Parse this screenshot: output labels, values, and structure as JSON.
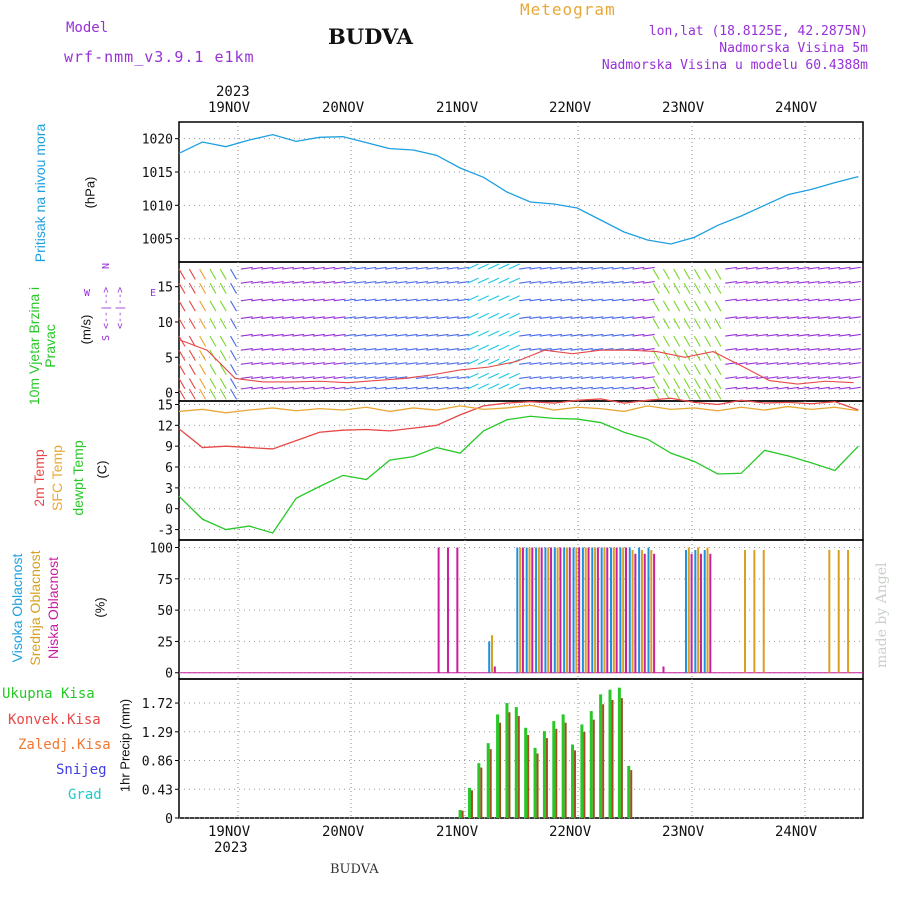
{
  "header": {
    "title": "BUDVA",
    "model_label": "Model",
    "model_name": "wrf-nmm_v3.9.1 e1km",
    "meteogram_label": "Meteogram",
    "lonlat": "lon,lat (18.8125E, 42.2875N)",
    "altitude": "Nadmorska Visina 5m",
    "model_altitude": "Nadmorska Visina u modelu 60.4388m",
    "footer_title": "BUDVA",
    "watermark": "made by Angel"
  },
  "time_axis": {
    "labels": [
      "19NOV",
      "20NOV",
      "21NOV",
      "22NOV",
      "23NOV",
      "24NOV"
    ],
    "year": "2023"
  },
  "colors": {
    "pressure": "#1ea0e0",
    "temp2m": "#e84848",
    "sfc_temp": "#e8a838",
    "dewpoint": "#28c828",
    "high_cloud": "#1e90e0",
    "mid_cloud": "#d8a020",
    "low_cloud": "#c81ea0",
    "total_precip": "#28c828",
    "conv_precip": "#e84848",
    "frozen_precip": "#f07830",
    "snow": "#4040e0",
    "hail": "#20c8c8",
    "wind_label": "#28c828",
    "axis_purple": "#9830d8"
  },
  "chart_data": [
    {
      "type": "line",
      "panel": "pressure",
      "ylabel": "Pritisak na nivou mora",
      "unit": "(hPa)",
      "yticks": [
        "1005",
        "1010",
        "1015",
        "1020"
      ],
      "ylim": [
        1001.5,
        1022.5
      ],
      "x": [
        0,
        5,
        10,
        15,
        20,
        25,
        30,
        35,
        40,
        45,
        50,
        55,
        60,
        65,
        70,
        75,
        80,
        85,
        90,
        95,
        100,
        105,
        110,
        115,
        120,
        125,
        130,
        135,
        140,
        145
      ],
      "series": [
        {
          "values": [
            1017.8,
            1019.5,
            1018.8,
            1019.8,
            1020.6,
            1019.6,
            1020.2,
            1020.3,
            1019.4,
            1018.5,
            1018.3,
            1017.5,
            1015.6,
            1014.2,
            1012.0,
            1010.5,
            1010.2,
            1009.6,
            1007.8,
            1006.0,
            1004.8,
            1004.2,
            1005.2,
            1007.0,
            1008.4,
            1010.0,
            1011.6,
            1012.4,
            1013.4,
            1014.3
          ]
        }
      ]
    },
    {
      "type": "wind",
      "panel": "wind",
      "ylabel": "10m Vjetar Brzina i Pravac",
      "unit": "(m/s)",
      "compass_labels": [
        "N",
        "E",
        "S",
        "W"
      ],
      "compass_arrows": [
        "<--|-->",
        "<--|-->"
      ],
      "yticks": [
        "0",
        "5",
        "10",
        "15"
      ],
      "ylim": [
        -1.2,
        18.5
      ],
      "x": [
        0,
        6,
        12,
        18,
        24,
        30,
        36,
        42,
        48,
        54,
        60,
        66,
        72,
        78,
        84,
        90,
        96,
        102,
        108,
        114,
        120,
        126,
        132,
        138,
        144
      ],
      "series": [
        {
          "values": [
            7.5,
            6.0,
            2.0,
            1.5,
            1.5,
            1.6,
            1.4,
            1.7,
            2.0,
            2.5,
            3.2,
            3.6,
            4.4,
            6.0,
            5.5,
            6.0,
            6.0,
            5.8,
            5.0,
            5.8,
            3.8,
            1.7,
            1.2,
            1.6,
            1.4
          ]
        }
      ]
    },
    {
      "type": "line",
      "panel": "temperature",
      "ylabels": [
        "2m Temp",
        "SFC Temp",
        "dewpt Temp"
      ],
      "unit": "(C)",
      "yticks": [
        "-3",
        "0",
        "3",
        "6",
        "9",
        "12",
        "15"
      ],
      "ylim": [
        -4.5,
        15.5
      ],
      "x": [
        0,
        5,
        10,
        15,
        20,
        25,
        30,
        35,
        40,
        45,
        50,
        55,
        60,
        65,
        70,
        75,
        80,
        85,
        90,
        95,
        100,
        105,
        110,
        115,
        120,
        125,
        130,
        135,
        140,
        145
      ],
      "series": [
        {
          "name": "2m Temp",
          "values": [
            11.5,
            8.8,
            9.0,
            8.8,
            8.6,
            9.8,
            11.0,
            11.3,
            11.4,
            11.2,
            11.6,
            12.0,
            13.5,
            14.8,
            15.2,
            15.4,
            15.2,
            15.6,
            15.8,
            15.2,
            15.6,
            15.9,
            15.3,
            15.0,
            15.6,
            15.2,
            15.3,
            15.1,
            15.4,
            14.2
          ]
        },
        {
          "name": "SFC Temp",
          "values": [
            14.0,
            14.3,
            13.8,
            14.2,
            14.5,
            14.1,
            14.4,
            14.2,
            14.6,
            14.0,
            14.5,
            14.2,
            14.8,
            14.3,
            14.5,
            14.9,
            14.2,
            14.6,
            14.4,
            14.0,
            14.8,
            14.3,
            14.5,
            14.1,
            14.6,
            14.2,
            14.7,
            14.3,
            14.6,
            14.1
          ]
        },
        {
          "name": "dewpt Temp",
          "values": [
            1.8,
            -1.5,
            -3.0,
            -2.5,
            -3.5,
            1.5,
            3.2,
            4.8,
            4.2,
            7.0,
            7.5,
            8.8,
            8.0,
            11.2,
            12.8,
            13.3,
            13.0,
            12.9,
            12.4,
            11.0,
            10.0,
            8.0,
            6.8,
            5.0,
            5.1,
            8.4,
            7.6,
            6.6,
            5.5,
            9.0
          ]
        }
      ]
    },
    {
      "type": "bar",
      "panel": "cloud",
      "ylabels": [
        "Visoka Oblacnost",
        "Srednja Oblacnost",
        "Niska Oblacnost"
      ],
      "unit": "(%)",
      "yticks": [
        "0",
        "25",
        "50",
        "75",
        "100"
      ],
      "ylim": [
        -5,
        106
      ],
      "x": [
        30,
        36,
        42,
        48,
        54,
        60,
        66,
        72,
        78,
        84,
        90,
        96,
        102,
        108,
        114,
        120,
        126,
        132,
        138
      ],
      "series": [
        {
          "name": "Visoka Oblacnost",
          "values": [
            0,
            0,
            0,
            0,
            0,
            0,
            25,
            100,
            100,
            100,
            100,
            100,
            0,
            98,
            0,
            0,
            0,
            0,
            0
          ]
        },
        {
          "name": "Srednja Oblacnost",
          "values": [
            0,
            0,
            0,
            0,
            0,
            0,
            30,
            100,
            100,
            100,
            100,
            98,
            0,
            100,
            0,
            98,
            0,
            0,
            98
          ]
        },
        {
          "name": "Niska Oblacnost",
          "values": [
            0,
            0,
            0,
            0,
            100,
            0,
            5,
            100,
            100,
            100,
            100,
            95,
            5,
            95,
            0,
            0,
            0,
            0,
            0
          ]
        }
      ]
    },
    {
      "type": "bar",
      "panel": "precipitation",
      "ylabels": [
        "Ukupna Kisa",
        "Konvek.Kisa",
        "Zaledj.Kisa",
        "Snijeg",
        "Grad"
      ],
      "unit": "1hr Precip (mm)",
      "yticks": [
        "0",
        "0.43",
        "0.86",
        "1.29",
        "1.72"
      ],
      "ylim": [
        0,
        2.08
      ],
      "x": [
        60,
        62,
        64,
        66,
        68,
        70,
        72,
        74,
        76,
        78,
        80,
        82,
        84,
        86,
        88,
        90,
        92,
        94,
        96,
        98
      ],
      "series": [
        {
          "name": "Ukupna Kisa",
          "values": [
            0.12,
            0.45,
            0.82,
            1.12,
            1.55,
            1.72,
            1.66,
            1.35,
            1.05,
            1.3,
            1.45,
            1.55,
            1.1,
            1.4,
            1.6,
            1.85,
            1.92,
            1.95,
            0.78,
            0
          ]
        }
      ]
    }
  ]
}
